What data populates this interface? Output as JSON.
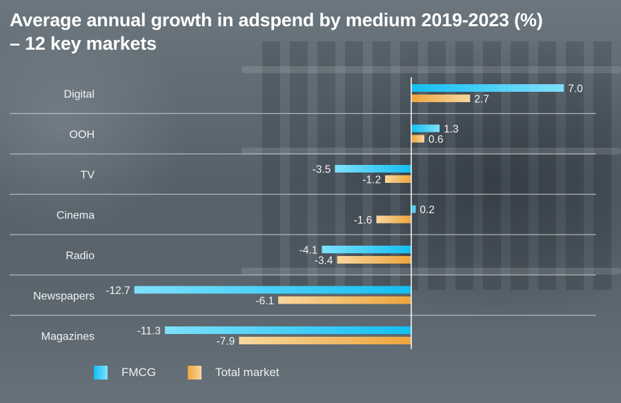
{
  "colors": {
    "fmcg_start": "#7fe0fb",
    "fmcg_end": "#12bff2",
    "total_start": "#f8d79d",
    "total_end": "#eda43c",
    "text": "#f2f4f5",
    "axis": "#ffffff",
    "grid": "#c9cfd3"
  },
  "chart_data": {
    "type": "bar",
    "orientation": "horizontal",
    "title": "Average annual growth in adspend by medium 2019-2023 (%) – 12 key markets",
    "title_lines": [
      "Average annual growth in adspend by medium 2019-2023 (%)",
      "– 12 key markets"
    ],
    "xlabel": "",
    "ylabel": "",
    "categories": [
      "Digital",
      "OOH",
      "TV",
      "Cinema",
      "Radio",
      "Newspapers",
      "Magazines"
    ],
    "series": [
      {
        "name": "FMCG",
        "values": [
          7.0,
          1.3,
          -3.5,
          0.2,
          -4.1,
          -12.7,
          -11.3
        ]
      },
      {
        "name": "Total market",
        "values": [
          2.7,
          0.6,
          -1.2,
          -1.6,
          -3.4,
          -6.1,
          -7.9
        ]
      }
    ],
    "value_labels": {
      "FMCG": [
        "7.0",
        "1.3",
        "-3.5",
        "0.2",
        "-4.1",
        "-12.7",
        "-11.3"
      ],
      "Total market": [
        "2.7",
        "0.6",
        "-1.2",
        "-1.6",
        "-3.4",
        "-6.1",
        "-7.9"
      ]
    },
    "xlim": [
      -18.9,
      8.5
    ],
    "grid": "horizontal separators between categories",
    "legend": "bottom-left"
  },
  "legend": {
    "items": [
      {
        "label": "FMCG"
      },
      {
        "label": "Total market"
      }
    ]
  }
}
